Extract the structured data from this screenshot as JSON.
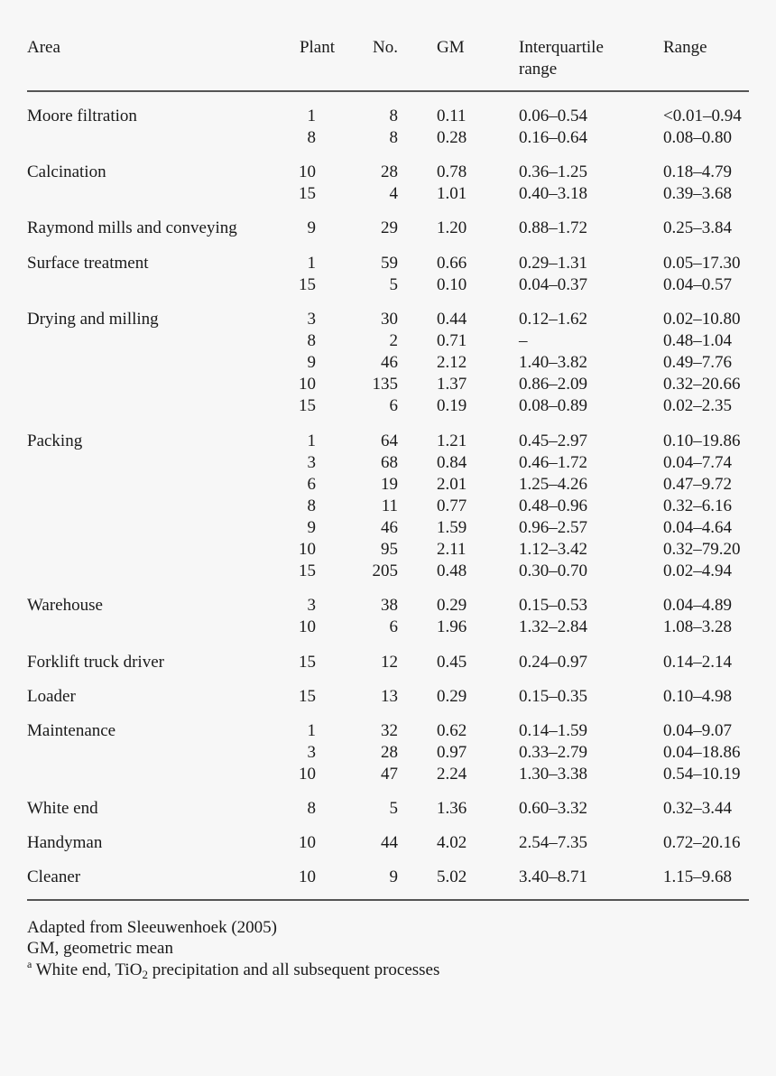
{
  "headers": {
    "area": "Area",
    "plant": "Plant",
    "no": "No.",
    "gm": "GM",
    "iqr_line1": "Interquartile",
    "iqr_line2": "range",
    "range": "Range"
  },
  "rows": [
    {
      "area": "Moore filtration",
      "plant": "1",
      "no": "8",
      "gm": "0.11",
      "iqr": "0.06–0.54",
      "range": "<0.01–0.94"
    },
    {
      "area": "",
      "plant": "8",
      "no": "8",
      "gm": "0.28",
      "iqr": "0.16–0.64",
      "range": "0.08–0.80"
    },
    {
      "area": "Calcination",
      "plant": "10",
      "no": "28",
      "gm": "0.78",
      "iqr": "0.36–1.25",
      "range": "0.18–4.79"
    },
    {
      "area": "",
      "plant": "15",
      "no": "4",
      "gm": "1.01",
      "iqr": "0.40–3.18",
      "range": "0.39–3.68"
    },
    {
      "area": "Raymond mills and conveying",
      "plant": "9",
      "no": "29",
      "gm": "1.20",
      "iqr": "0.88–1.72",
      "range": "0.25–3.84"
    },
    {
      "area": "Surface treatment",
      "plant": "1",
      "no": "59",
      "gm": "0.66",
      "iqr": "0.29–1.31",
      "range": "0.05–17.30"
    },
    {
      "area": "",
      "plant": "15",
      "no": "5",
      "gm": "0.10",
      "iqr": "0.04–0.37",
      "range": "0.04–0.57"
    },
    {
      "area": "Drying and milling",
      "plant": "3",
      "no": "30",
      "gm": "0.44",
      "iqr": "0.12–1.62",
      "range": "0.02–10.80"
    },
    {
      "area": "",
      "plant": "8",
      "no": "2",
      "gm": "0.71",
      "iqr": "–",
      "range": "0.48–1.04"
    },
    {
      "area": "",
      "plant": "9",
      "no": "46",
      "gm": "2.12",
      "iqr": "1.40–3.82",
      "range": "0.49–7.76"
    },
    {
      "area": "",
      "plant": "10",
      "no": "135",
      "gm": "1.37",
      "iqr": "0.86–2.09",
      "range": "0.32–20.66"
    },
    {
      "area": "",
      "plant": "15",
      "no": "6",
      "gm": "0.19",
      "iqr": "0.08–0.89",
      "range": "0.02–2.35"
    },
    {
      "area": "Packing",
      "plant": "1",
      "no": "64",
      "gm": "1.21",
      "iqr": "0.45–2.97",
      "range": "0.10–19.86"
    },
    {
      "area": "",
      "plant": "3",
      "no": "68",
      "gm": "0.84",
      "iqr": "0.46–1.72",
      "range": "0.04–7.74"
    },
    {
      "area": "",
      "plant": "6",
      "no": "19",
      "gm": "2.01",
      "iqr": "1.25–4.26",
      "range": "0.47–9.72"
    },
    {
      "area": "",
      "plant": "8",
      "no": "11",
      "gm": "0.77",
      "iqr": "0.48–0.96",
      "range": "0.32–6.16"
    },
    {
      "area": "",
      "plant": "9",
      "no": "46",
      "gm": "1.59",
      "iqr": "0.96–2.57",
      "range": "0.04–4.64"
    },
    {
      "area": "",
      "plant": "10",
      "no": "95",
      "gm": "2.11",
      "iqr": "1.12–3.42",
      "range": "0.32–79.20"
    },
    {
      "area": "",
      "plant": "15",
      "no": "205",
      "gm": "0.48",
      "iqr": "0.30–0.70",
      "range": "0.02–4.94"
    },
    {
      "area": "Warehouse",
      "plant": "3",
      "no": "38",
      "gm": "0.29",
      "iqr": "0.15–0.53",
      "range": "0.04–4.89"
    },
    {
      "area": "",
      "plant": "10",
      "no": "6",
      "gm": "1.96",
      "iqr": "1.32–2.84",
      "range": "1.08–3.28"
    },
    {
      "area": "Forklift truck driver",
      "plant": "15",
      "no": "12",
      "gm": "0.45",
      "iqr": "0.24–0.97",
      "range": "0.14–2.14"
    },
    {
      "area": "Loader",
      "plant": "15",
      "no": "13",
      "gm": "0.29",
      "iqr": "0.15–0.35",
      "range": "0.10–4.98"
    },
    {
      "area": "Maintenance",
      "plant": "1",
      "no": "32",
      "gm": "0.62",
      "iqr": "0.14–1.59",
      "range": "0.04–9.07"
    },
    {
      "area": "",
      "plant": "3",
      "no": "28",
      "gm": "0.97",
      "iqr": "0.33–2.79",
      "range": "0.04–18.86"
    },
    {
      "area": "",
      "plant": "10",
      "no": "47",
      "gm": "2.24",
      "iqr": "1.30–3.38",
      "range": "0.54–10.19"
    },
    {
      "area": "White end",
      "plant": "8",
      "no": "5",
      "gm": "1.36",
      "iqr": "0.60–3.32",
      "range": "0.32–3.44"
    },
    {
      "area": "Handyman",
      "plant": "10",
      "no": "44",
      "gm": "4.02",
      "iqr": "2.54–7.35",
      "range": "0.72–20.16"
    },
    {
      "area": "Cleaner",
      "plant": "10",
      "no": "9",
      "gm": "5.02",
      "iqr": "3.40–8.71",
      "range": "1.15–9.68"
    }
  ],
  "footnotes": {
    "source": "Adapted from Sleeuwenhoek (2005)",
    "gm_def": "GM, geometric mean",
    "a_marker": "a",
    "a_text_before": " White end, TiO",
    "a_subscript": "2",
    "a_text_after": " precipitation and all subsequent processes"
  }
}
